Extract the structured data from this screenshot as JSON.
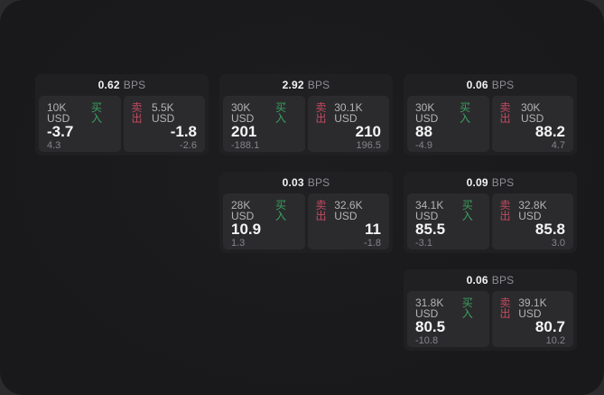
{
  "unit_label": "BPS",
  "colors": {
    "buy_accent": "#3ca05f",
    "sell_accent": "#c4495f",
    "window_bg": "#1a1a1c",
    "card_bg": "#202023",
    "panel_bg": "#2b2b2e"
  },
  "cards": [
    {
      "bps": "0.62",
      "unit": "BPS",
      "buy": {
        "size": "10K USD",
        "side": "买入",
        "main": "-3.7",
        "sub": "4.3"
      },
      "sell": {
        "side": "卖出",
        "size": "5.5K USD",
        "main": "-1.8",
        "sub": "-2.6"
      }
    },
    {
      "bps": "2.92",
      "unit": "BPS",
      "buy": {
        "size": "30K USD",
        "side": "买入",
        "main": "201",
        "sub": "-188.1"
      },
      "sell": {
        "side": "卖出",
        "size": "30.1K USD",
        "main": "210",
        "sub": "196.5"
      }
    },
    {
      "bps": "0.06",
      "unit": "BPS",
      "buy": {
        "size": "30K USD",
        "side": "买入",
        "main": "88",
        "sub": "-4.9"
      },
      "sell": {
        "side": "卖出",
        "size": "30K USD",
        "main": "88.2",
        "sub": "4.7"
      }
    },
    {
      "bps": "0.03",
      "unit": "BPS",
      "buy": {
        "size": "28K USD",
        "side": "买入",
        "main": "10.9",
        "sub": "1.3"
      },
      "sell": {
        "side": "卖出",
        "size": "32.6K USD",
        "main": "11",
        "sub": "-1.8"
      }
    },
    {
      "bps": "0.09",
      "unit": "BPS",
      "buy": {
        "size": "34.1K USD",
        "side": "买入",
        "main": "85.5",
        "sub": "-3.1"
      },
      "sell": {
        "side": "卖出",
        "size": "32.8K USD",
        "main": "85.8",
        "sub": "3.0"
      }
    },
    {
      "bps": "0.06",
      "unit": "BPS",
      "buy": {
        "size": "31.8K USD",
        "side": "买入",
        "main": "80.5",
        "sub": "-10.8"
      },
      "sell": {
        "side": "卖出",
        "size": "39.1K USD",
        "main": "80.7",
        "sub": "10.2"
      }
    }
  ]
}
